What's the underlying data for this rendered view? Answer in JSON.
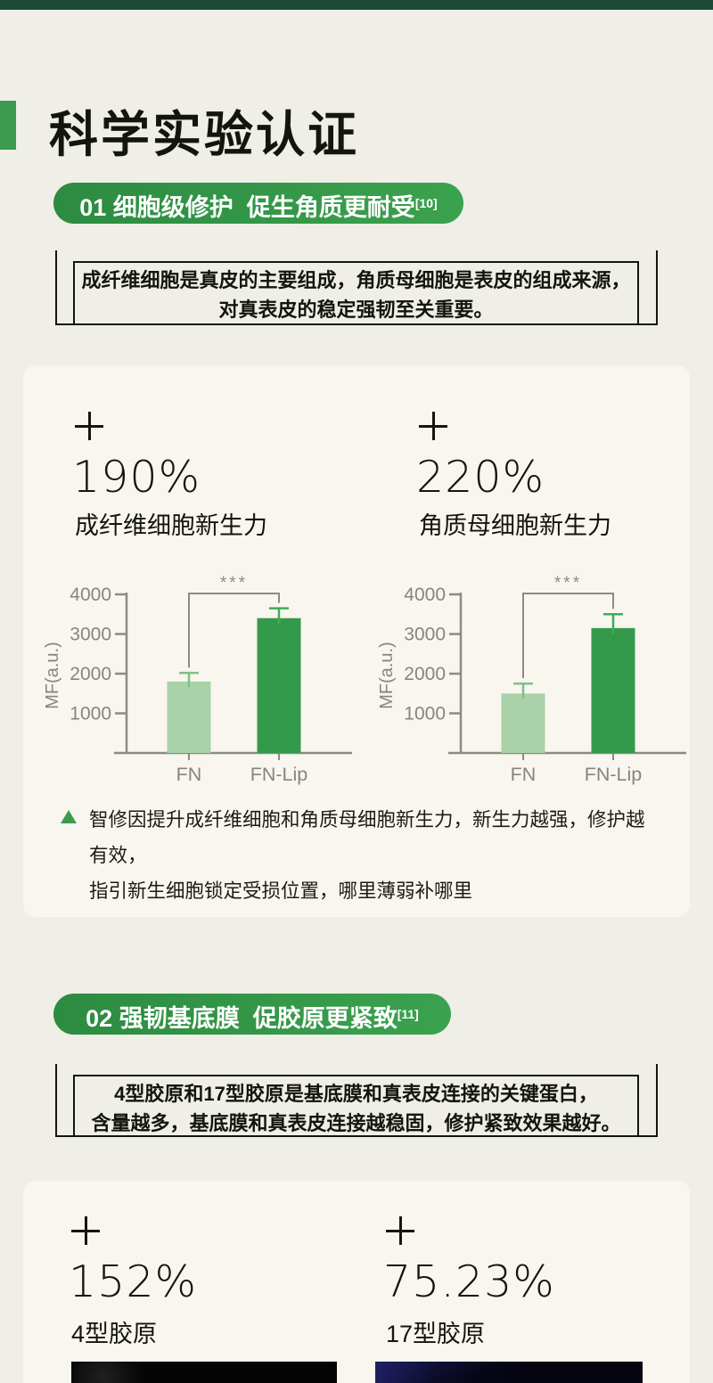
{
  "colors": {
    "page_bg": "#EFEEE7",
    "card_bg": "#F8F6EF",
    "top_bar": "#194B37",
    "accent_green": "#3C9B4E",
    "badge_gradient_start": "#2C8B40",
    "badge_gradient_end": "#3BA24F",
    "box_border": "#15150F",
    "chart_axis": "#8B8B85",
    "chart_text": "#85857F"
  },
  "header": {
    "title": "科学实验认证"
  },
  "section1": {
    "badge_label": "01 细胞级修护  促生角质更耐受",
    "badge_sup": "[10]",
    "intro_line1": "成纤维细胞是真皮的主要组成，角质母细胞是表皮的组成来源，",
    "intro_line2": "对真表皮的稳定强韧至关重要。",
    "stats": [
      {
        "value": "190%",
        "label": "成纤维细胞新生力"
      },
      {
        "value": "220%",
        "label": "角质母细胞新生力"
      }
    ],
    "note_line1": "智修因提升成纤维细胞和角质母细胞新生力，新生力越强，修护越有效，",
    "note_line2": "指引新生细胞锁定受损位置，哪里薄弱补哪里"
  },
  "section2": {
    "badge_label": "02 强韧基底膜  促胶原更紧致",
    "badge_sup": "[11]",
    "intro_line1": "4型胶原和17型胶原是基底膜和真表皮连接的关键蛋白，",
    "intro_line2": "含量越多，基底膜和真表皮连接越稳固，修护紧致效果越好。",
    "stats": [
      {
        "value": "152%",
        "label": "4型胶原"
      },
      {
        "value": "75.23%",
        "label": "17型胶原"
      }
    ]
  },
  "chart_data": [
    {
      "type": "bar",
      "title": "成纤维细胞新生力",
      "ylabel": "MF(a.u.)",
      "xlabel": "",
      "categories": [
        "FN",
        "FN-Lip"
      ],
      "values": [
        1800,
        3400
      ],
      "errors": [
        220,
        250
      ],
      "ylim": [
        0,
        4000
      ],
      "yticks": [
        1000,
        2000,
        3000,
        4000
      ],
      "grid": false,
      "legend_position": "none",
      "significance": "***",
      "bar_colors": [
        "#A9D2A8",
        "#349A4B"
      ],
      "error_colors": [
        "#7CC184",
        "#3EAE52"
      ]
    },
    {
      "type": "bar",
      "title": "角质母细胞新生力",
      "ylabel": "MF(a.u.)",
      "xlabel": "",
      "categories": [
        "FN",
        "FN-Lip"
      ],
      "values": [
        1500,
        3150
      ],
      "errors": [
        250,
        350
      ],
      "ylim": [
        0,
        4000
      ],
      "yticks": [
        1000,
        2000,
        3000,
        4000
      ],
      "grid": false,
      "legend_position": "none",
      "significance": "***",
      "bar_colors": [
        "#A9D2A8",
        "#349A4B"
      ],
      "error_colors": [
        "#7CC184",
        "#3EAE52"
      ]
    }
  ]
}
